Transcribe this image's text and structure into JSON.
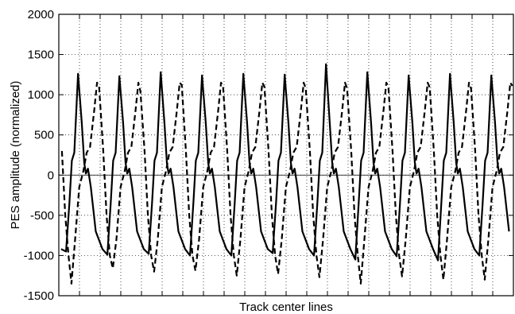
{
  "chart_data": {
    "type": "line",
    "title": "",
    "xlabel": "Track center lines",
    "ylabel": "PES amplitude (normalized)",
    "ylim": [
      -1500,
      2000
    ],
    "yticks": [
      -1500,
      -1000,
      -500,
      0,
      500,
      1000,
      1500,
      2000
    ],
    "xticks_labeled": false,
    "grid": "dotted",
    "period_tracks": 2,
    "n_tracks": 22,
    "series": [
      {
        "style": "solid",
        "peaks": [
          1260,
          1230,
          1280,
          1240,
          1260,
          1250,
          1380,
          1280,
          1240,
          1260,
          1240,
          1260,
          1270
        ],
        "troughs": [
          -950,
          -990,
          -980,
          -1000,
          -1000,
          -970,
          -1000,
          -1050,
          -1010,
          -1060,
          -1000,
          -1070,
          -1030
        ]
      },
      {
        "style": "dashed",
        "peaks": [
          1200,
          1100,
          1040,
          1120,
          1100,
          1100,
          1080,
          1080,
          1100,
          1090,
          1080,
          1110,
          1300
        ],
        "troughs": [
          -1350,
          -1160,
          -1200,
          -1190,
          -1250,
          -1230,
          -1270,
          -1350,
          -1260,
          -1300,
          -1300,
          -1370,
          -1000
        ]
      }
    ]
  }
}
